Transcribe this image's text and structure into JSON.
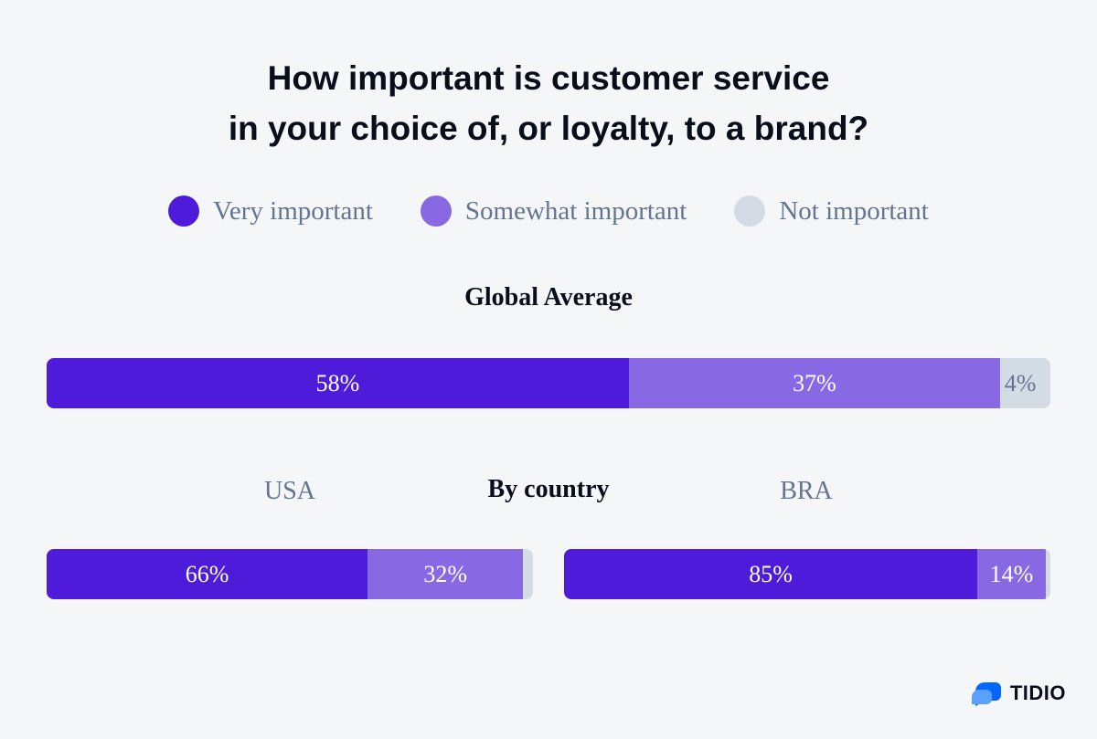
{
  "title_lines": [
    "How important is customer service",
    "in your choice of, or loyalty, to a brand?"
  ],
  "colors": {
    "very": "#4f1bdb",
    "somewhat": "#8968e3",
    "not": "#d3dbe5",
    "background": "#f5f6f8",
    "brand_blue": "#0566ff"
  },
  "legend": [
    {
      "label": "Very important",
      "color": "#4f1bdb"
    },
    {
      "label": "Somewhat important",
      "color": "#8968e3"
    },
    {
      "label": "Not important",
      "color": "#d3dbe5"
    }
  ],
  "sections": {
    "global": "Global Average",
    "by_country": "By country"
  },
  "chart_data": {
    "type": "bar",
    "orientation": "horizontal",
    "stacked": true,
    "title": "How important is customer service in your choice of, or loyalty, to a brand?",
    "categories": [
      "Global Average",
      "USA",
      "BRA"
    ],
    "series": [
      {
        "name": "Very important",
        "values": [
          58,
          66,
          85
        ],
        "labels": [
          "58%",
          "66%",
          "85%"
        ]
      },
      {
        "name": "Somewhat important",
        "values": [
          37,
          32,
          14
        ],
        "labels": [
          "37%",
          "32%",
          "14%"
        ]
      },
      {
        "name": "Not important",
        "values": [
          4,
          2,
          1
        ],
        "labels": [
          "4%",
          "",
          ""
        ]
      }
    ],
    "legend_position": "top",
    "grid": false
  },
  "brand": {
    "name": "TIDIO",
    "icon": "tidio-logo-icon"
  }
}
